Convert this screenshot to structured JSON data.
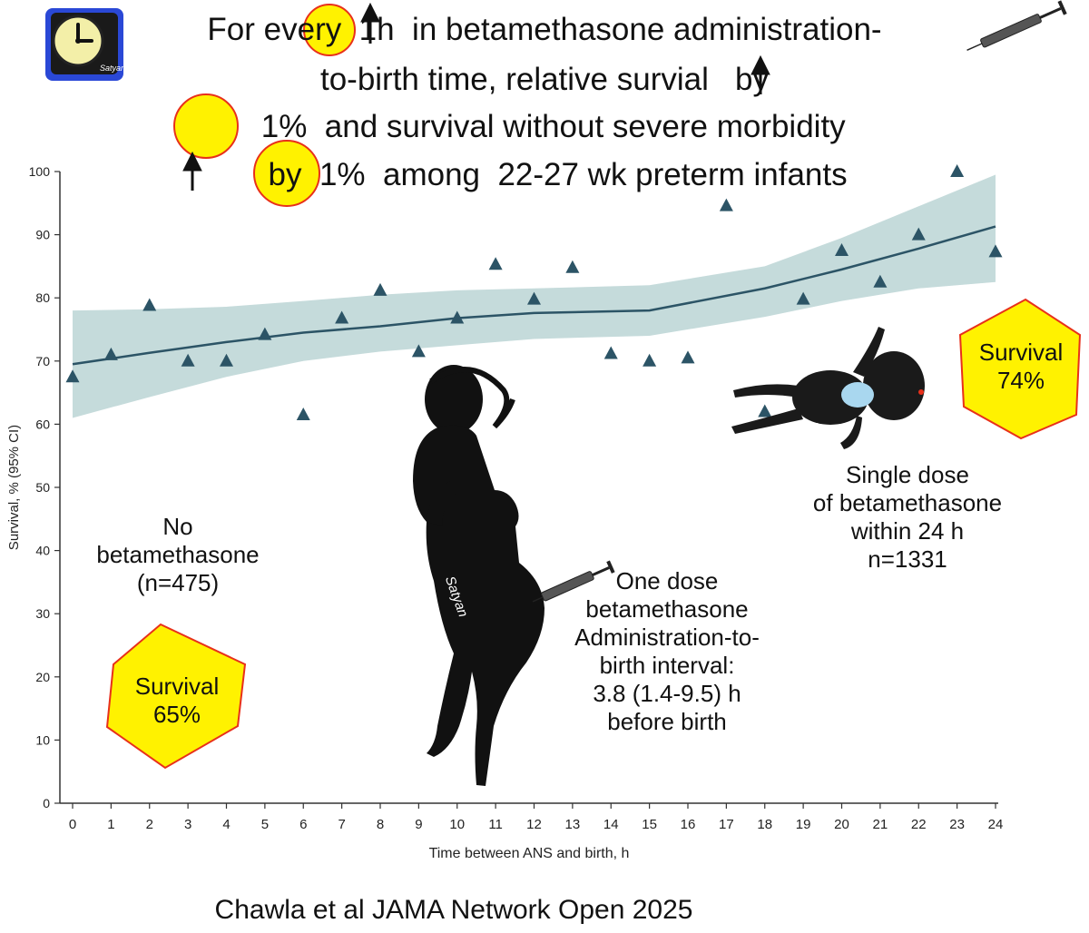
{
  "header": {
    "lines": [
      "For every  1h  in betamethasone administration-",
      "to-birth time, relative survial   by",
      "  1%  and survival without severe morbidity",
      "   by  1%  among  22-27 wk preterm infants"
    ]
  },
  "annotations": {
    "no_betamethasone": "No\nbetamethasone\n(n=475)",
    "one_dose": "One dose\nbetamethasone\nAdministration-to-\nbirth interval:\n3.8 (1.4-9.5) h\nbefore birth",
    "single_dose": "Single dose\nof betamethasone\nwithin 24 h\nn=1331",
    "survival_left": "Survival\n65%",
    "survival_right": "Survival\n74%",
    "signature": "Satyan"
  },
  "citation": "Chawla et al JAMA Network Open 2025",
  "colors": {
    "marker": "#2c5466",
    "trend_line": "#2c5466",
    "ci_band": "#c5dbdb",
    "highlight_fill": "#fff200",
    "highlight_stroke": "#e8301a",
    "silhouette": "#111111"
  },
  "chart_data": {
    "type": "scatter",
    "xlabel": "Time between ANS and birth, h",
    "ylabel": "Survival, % (95% CI)",
    "xlim": [
      0,
      24
    ],
    "ylim": [
      0,
      100
    ],
    "xticks": [
      "0",
      "1",
      "2",
      "3",
      "4",
      "5",
      "6",
      "7",
      "8",
      "9",
      "10",
      "11",
      "12",
      "13",
      "14",
      "15",
      "16",
      "17",
      "18",
      "19",
      "20",
      "21",
      "22",
      "23",
      "24"
    ],
    "yticks": [
      "0",
      "10",
      "20",
      "30",
      "40",
      "50",
      "60",
      "70",
      "80",
      "90",
      "100"
    ],
    "grid": false,
    "points": {
      "x": [
        0,
        1,
        2,
        3,
        4,
        5,
        6,
        7,
        8,
        9,
        10,
        11,
        12,
        13,
        14,
        15,
        16,
        17,
        18,
        19,
        20,
        21,
        22,
        23,
        24
      ],
      "y": [
        67.5,
        71,
        78.8,
        70,
        70,
        74.2,
        61.5,
        76.8,
        81.2,
        71.5,
        76.8,
        85.3,
        79.8,
        84.8,
        71.2,
        70,
        70.5,
        94.6,
        62,
        79.8,
        87.5,
        82.5,
        90,
        100,
        87.3
      ]
    },
    "trend": {
      "x": [
        0,
        2,
        4,
        6,
        8,
        10,
        12,
        15,
        18,
        20,
        22,
        24
      ],
      "y": [
        69.5,
        71.3,
        73,
        74.5,
        75.5,
        76.8,
        77.6,
        78,
        81.5,
        84.5,
        87.8,
        91.3
      ]
    },
    "ci_upper": [
      78,
      78.2,
      78.6,
      79.5,
      80.5,
      81.2,
      81.5,
      82,
      85,
      89.5,
      94.5,
      99.5
    ],
    "ci_lower": [
      61,
      64.3,
      67.5,
      70,
      71.5,
      72.5,
      73.5,
      74,
      77,
      79.5,
      81.5,
      82.5
    ]
  }
}
